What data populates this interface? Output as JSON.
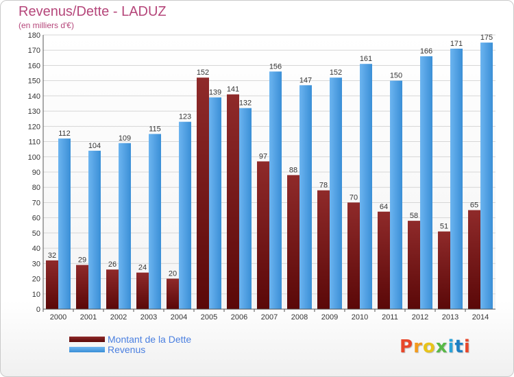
{
  "header": {
    "title": "Revenus/Dette - LADUZ",
    "subtitle": "(en milliers d'€)"
  },
  "legend": {
    "debt_label": "Montant de la Dette",
    "revenue_label": "Revenus"
  },
  "logo": {
    "text": "Proxiti"
  },
  "colors": {
    "debt_top": "#8f2a2a",
    "debt_bottom": "#5a0808",
    "revenue_top": "#6fb6f2",
    "revenue_bottom": "#3a8fd6",
    "title": "#b5467a",
    "legend_text": "#4a7fe0",
    "logo": [
      "#e8472a",
      "#f39b1d",
      "#e8c41a",
      "#58b947",
      "#2aa3d9",
      "#1d7fc3",
      "#e8472a"
    ]
  },
  "chart_data": {
    "type": "bar",
    "title": "Revenus/Dette - LADUZ",
    "subtitle": "(en milliers d'€)",
    "categories": [
      "2000",
      "2001",
      "2002",
      "2003",
      "2004",
      "2005",
      "2006",
      "2007",
      "2008",
      "2009",
      "2010",
      "2011",
      "2012",
      "2013",
      "2014"
    ],
    "series": [
      {
        "name": "Montant de la Dette",
        "values": [
          32,
          29,
          26,
          24,
          20,
          152,
          141,
          97,
          88,
          78,
          70,
          64,
          58,
          51,
          65
        ]
      },
      {
        "name": "Revenus",
        "values": [
          112,
          104,
          109,
          115,
          123,
          139,
          132,
          156,
          147,
          152,
          161,
          150,
          166,
          171,
          175
        ]
      }
    ],
    "ylim": [
      0,
      180
    ],
    "yticks": [
      0,
      10,
      20,
      30,
      40,
      50,
      60,
      70,
      80,
      90,
      100,
      110,
      120,
      130,
      140,
      150,
      160,
      170,
      180
    ],
    "grid": true,
    "legend_position": "bottom-left",
    "data_labels": true
  }
}
